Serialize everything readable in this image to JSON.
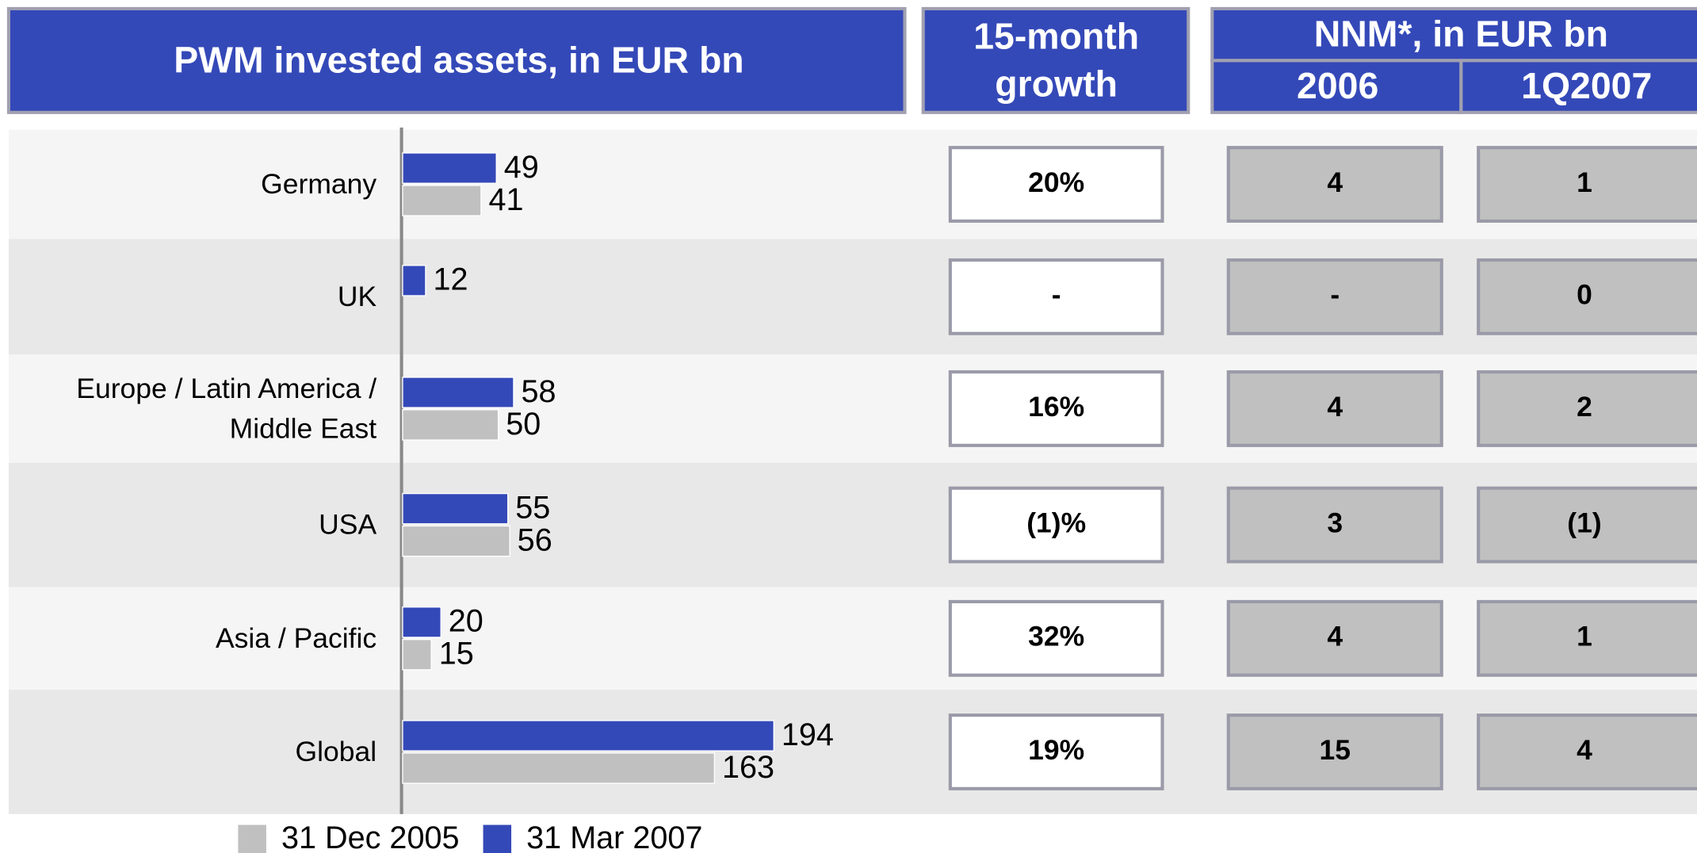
{
  "chart_data": {
    "type": "hbar",
    "title": "PWM invested assets, in EUR bn",
    "categories": [
      "Germany",
      "UK",
      "Europe / Latin America / Middle East",
      "USA",
      "Asia / Pacific",
      "Global"
    ],
    "series": [
      {
        "name": "31 Dec 2005",
        "color": "#c0c0c0",
        "values": [
          41,
          null,
          50,
          56,
          15,
          163
        ]
      },
      {
        "name": "31 Mar 2007",
        "color": "#3449b8",
        "values": [
          49,
          12,
          58,
          55,
          20,
          194
        ]
      }
    ],
    "xlim": [
      0,
      250
    ]
  },
  "table": {
    "growth_header": "15-month growth",
    "nnm_header": "NNM*, in EUR bn",
    "nnm_columns": [
      "2006",
      "1Q2007"
    ],
    "rows": [
      [
        "20%",
        "4",
        "1"
      ],
      [
        "-",
        "-",
        "0"
      ],
      [
        "16%",
        "4",
        "2"
      ],
      [
        "(1)%",
        "3",
        "(1)"
      ],
      [
        "32%",
        "4",
        "1"
      ],
      [
        "19%",
        "15",
        "4"
      ]
    ]
  }
}
